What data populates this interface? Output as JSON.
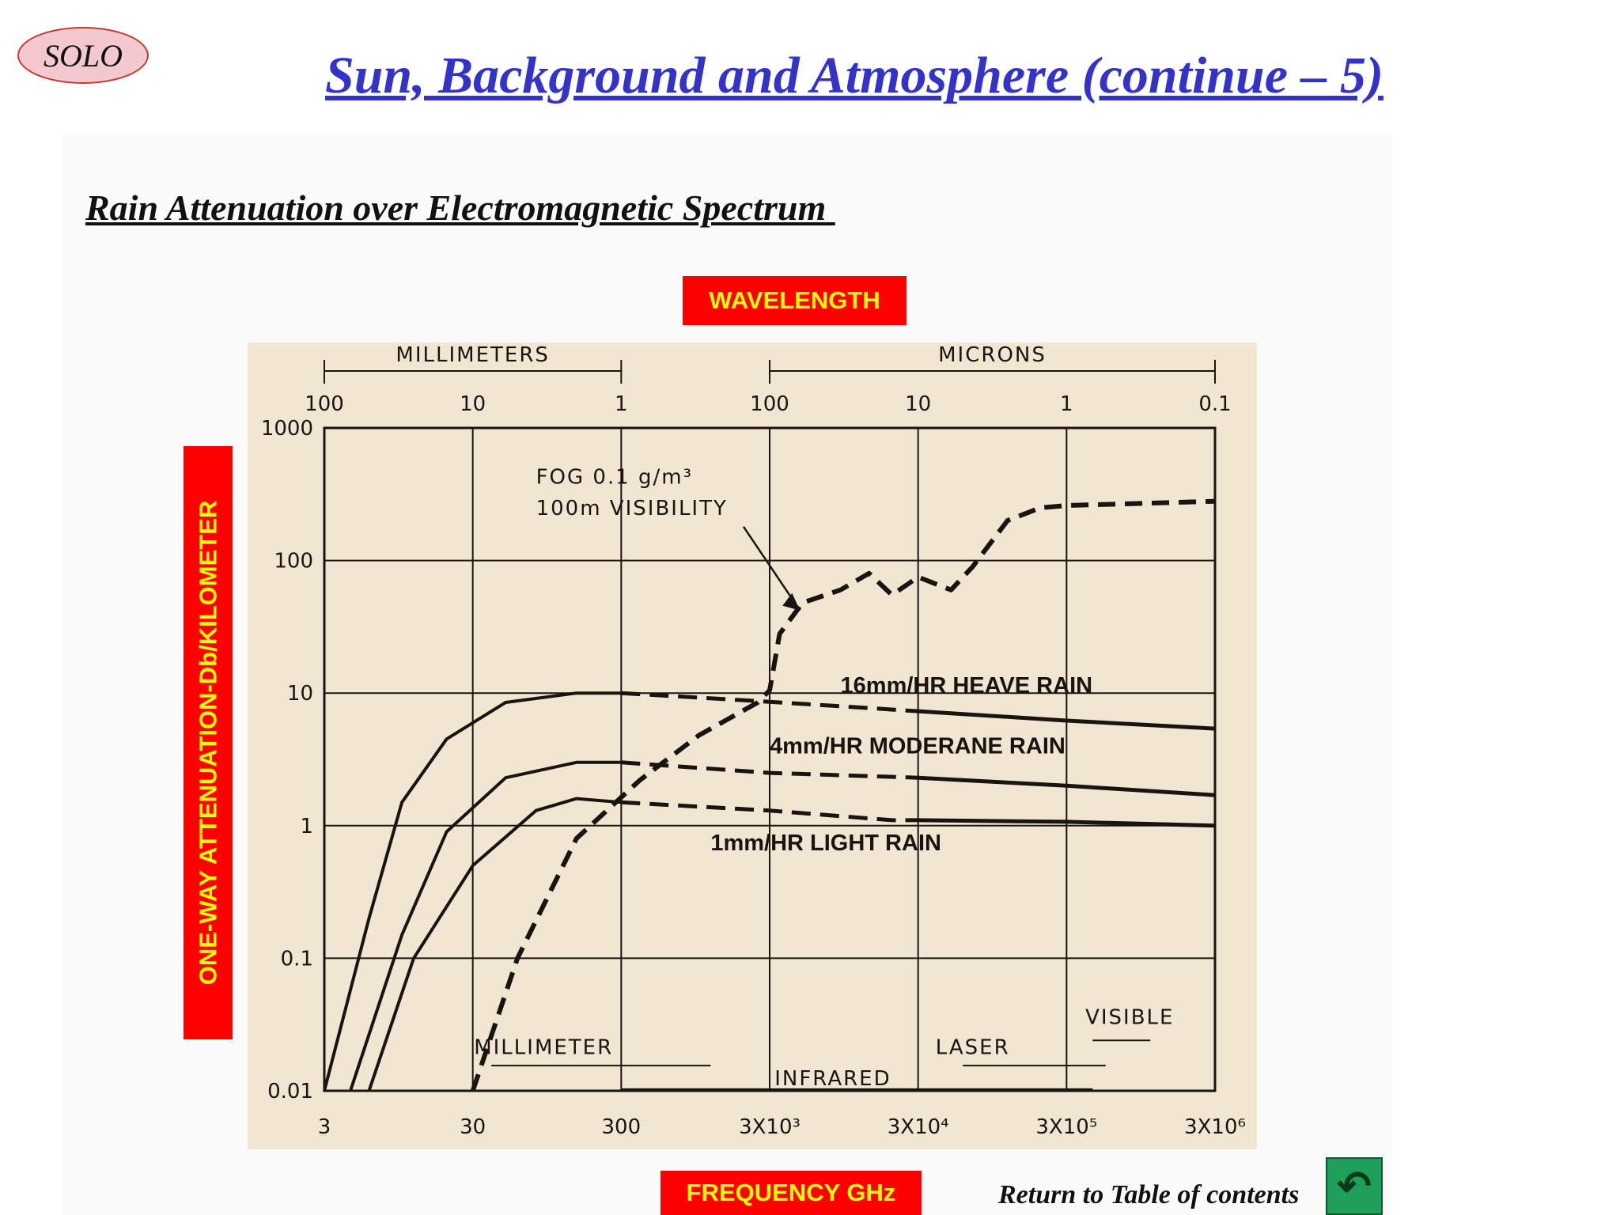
{
  "header": {
    "logo_text": "SOLO",
    "title": "Sun, Background and Atmosphere (continue – 5)",
    "subtitle": "Rain Attenuation over Electromagnetic Spectrum "
  },
  "labels": {
    "wavelength": "WAVELENGTH",
    "frequency": "FREQUENCY GHz",
    "y_axis": "ONE-WAY ATTENUATION-Db/KILOMETER"
  },
  "footer": {
    "return_text": "Return to Table of contents",
    "return_icon": "u-turn-arrow-icon"
  },
  "colors": {
    "title": "#3333cc",
    "label_bg": "#ff0000",
    "label_text": "#ffff00",
    "chart_bg": "#f1e6d2",
    "button": "#1fa05a"
  },
  "chart_data": {
    "type": "line",
    "x_scale": "log",
    "y_scale": "log",
    "xlim": [
      3,
      3000000
    ],
    "ylim": [
      0.01,
      1000
    ],
    "x_ticks": [
      {
        "value": 3,
        "label": "3"
      },
      {
        "value": 30,
        "label": "30"
      },
      {
        "value": 300,
        "label": "300"
      },
      {
        "value": 3000,
        "label": "3X10³"
      },
      {
        "value": 30000,
        "label": "3X10⁴"
      },
      {
        "value": 300000,
        "label": "3X10⁵"
      },
      {
        "value": 3000000,
        "label": "3X10⁶"
      }
    ],
    "y_ticks": [
      {
        "value": 0.01,
        "label": "0.01"
      },
      {
        "value": 0.1,
        "label": "0.1"
      },
      {
        "value": 1,
        "label": "1"
      },
      {
        "value": 10,
        "label": "10"
      },
      {
        "value": 100,
        "label": "100"
      },
      {
        "value": 1000,
        "label": "1000"
      }
    ],
    "top_ticks": [
      {
        "value": 3,
        "label": "100"
      },
      {
        "value": 30,
        "label": "10"
      },
      {
        "value": 300,
        "label": "1"
      },
      {
        "value": 3000,
        "label": "100"
      },
      {
        "value": 30000,
        "label": "10"
      },
      {
        "value": 300000,
        "label": "1"
      },
      {
        "value": 3000000,
        "label": "0.1"
      }
    ],
    "top_units": [
      {
        "label": "MILLIMETERS",
        "from": 3,
        "to": 300
      },
      {
        "label": "MICRONS",
        "from": 3000,
        "to": 3000000
      }
    ],
    "grid": true,
    "series": [
      {
        "name": "16mm/HR HEAVE RAIN",
        "style": "solid-dashed",
        "points": [
          [
            3,
            0.01
          ],
          [
            6,
            0.2
          ],
          [
            10,
            1.5
          ],
          [
            20,
            4.5
          ],
          [
            50,
            8.5
          ],
          [
            150,
            10
          ],
          [
            300,
            10
          ],
          [
            3000,
            8.6
          ],
          [
            30000,
            7.3
          ],
          [
            300000,
            6.2
          ],
          [
            3000000,
            5.4
          ]
        ]
      },
      {
        "name": "4mm/HR MODERANE RAIN",
        "style": "solid-dashed",
        "points": [
          [
            4.5,
            0.01
          ],
          [
            10,
            0.15
          ],
          [
            20,
            0.9
          ],
          [
            50,
            2.3
          ],
          [
            150,
            3
          ],
          [
            300,
            3
          ],
          [
            3000,
            2.5
          ],
          [
            30000,
            2.3
          ],
          [
            300000,
            2
          ],
          [
            3000000,
            1.7
          ]
        ]
      },
      {
        "name": "1mm/HR LIGHT RAIN",
        "style": "solid-dashed",
        "points": [
          [
            6,
            0.01
          ],
          [
            12,
            0.1
          ],
          [
            30,
            0.5
          ],
          [
            80,
            1.3
          ],
          [
            150,
            1.6
          ],
          [
            300,
            1.5
          ],
          [
            3000,
            1.3
          ],
          [
            20000,
            1.1
          ],
          [
            30000,
            1.1
          ],
          [
            300000,
            1.07
          ],
          [
            3000000,
            1
          ]
        ]
      },
      {
        "name": "FOG 0.1 g/m³ 100m VISIBILITY",
        "style": "dashed",
        "points": [
          [
            30,
            0.01
          ],
          [
            60,
            0.1
          ],
          [
            150,
            0.8
          ],
          [
            400,
            2.2
          ],
          [
            1000,
            4.8
          ],
          [
            2500,
            8.5
          ],
          [
            3000,
            10.5
          ],
          [
            3500,
            28
          ],
          [
            5000,
            48
          ],
          [
            9000,
            60
          ],
          [
            14000,
            80
          ],
          [
            20000,
            55
          ],
          [
            30000,
            75
          ],
          [
            50000,
            60
          ],
          [
            70000,
            90
          ],
          [
            120000,
            200
          ],
          [
            200000,
            250
          ],
          [
            300000,
            260
          ],
          [
            3000000,
            280
          ]
        ]
      }
    ],
    "annotations": [
      {
        "text": "FOG 0.1 g/m³",
        "x": 80,
        "y": 380
      },
      {
        "text": "100m VISIBILITY",
        "x": 80,
        "y": 220
      },
      {
        "text": "16mm/HR HEAVE RAIN",
        "x": 9000,
        "y": 10
      },
      {
        "text": "4mm/HR MODERANE RAIN",
        "x": 3000,
        "y": 3.5
      },
      {
        "text": "1mm/HR LIGHT RAIN",
        "x": 1200,
        "y": 0.65
      },
      {
        "text": "MILLIMETER",
        "x": 90,
        "y": 0.019
      },
      {
        "text": "INFRARED",
        "x": 8000,
        "y": 0.011
      },
      {
        "text": "LASER",
        "x": 70000,
        "y": 0.019
      },
      {
        "text": "VISIBLE",
        "x": 800000,
        "y": 0.032
      }
    ],
    "bands": [
      {
        "name": "MILLIMETER",
        "from": 40,
        "to": 1200,
        "y": 0.0155
      },
      {
        "name": "INFRARED",
        "from": 300,
        "to": 450000,
        "y": 0.0103
      },
      {
        "name": "LASER",
        "from": 60000,
        "to": 550000,
        "y": 0.0155
      },
      {
        "name": "VISIBLE",
        "from": 450000,
        "to": 1100000,
        "y": 0.024
      }
    ]
  }
}
